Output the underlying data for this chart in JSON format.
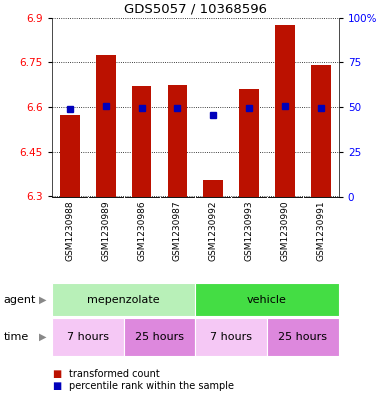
{
  "title": "GDS5057 / 10368596",
  "samples": [
    "GSM1230988",
    "GSM1230989",
    "GSM1230986",
    "GSM1230987",
    "GSM1230992",
    "GSM1230993",
    "GSM1230990",
    "GSM1230991"
  ],
  "red_values": [
    6.575,
    6.775,
    6.67,
    6.675,
    6.355,
    6.66,
    6.875,
    6.74
  ],
  "blue_values": [
    6.595,
    6.602,
    6.598,
    6.598,
    6.572,
    6.598,
    6.605,
    6.598
  ],
  "ymin": 6.3,
  "ymax": 6.9,
  "yticks_left": [
    6.3,
    6.45,
    6.6,
    6.75,
    6.9
  ],
  "yticks_right": [
    0,
    25,
    50,
    75,
    100
  ],
  "agent_labels": [
    "mepenzolate",
    "vehicle"
  ],
  "agent_colors_left": [
    "#c8f5c8",
    "#44dd44"
  ],
  "agent_colors_right": [
    "#44dd44",
    "#44dd44"
  ],
  "time_colors": [
    "#f5c8f5",
    "#dd88dd",
    "#f5c8f5",
    "#dd88dd"
  ],
  "time_labels": [
    "7 hours",
    "25 hours",
    "7 hours",
    "25 hours"
  ],
  "bar_color": "#bb1100",
  "dot_color": "#0000bb",
  "background_color": "#c8c8c8",
  "plot_bg": "#ffffff",
  "grid_color": "#000000"
}
